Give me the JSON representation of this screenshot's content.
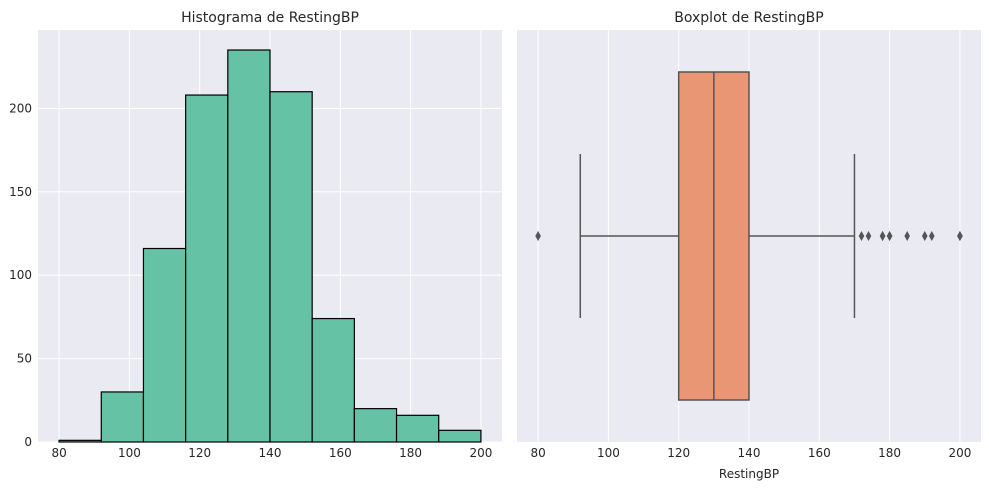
{
  "colors": {
    "panel_bg": "#eaeaf2",
    "grid": "#ffffff",
    "hist_fill": "#66c2a5",
    "box_fill": "#e99675",
    "box_stroke": "#555555",
    "text": "#262626"
  },
  "chart_data": [
    {
      "type": "bar",
      "subtype": "histogram",
      "title": "Histograma de RestingBP",
      "xlabel": "",
      "ylabel": "",
      "xlim": [
        74,
        206
      ],
      "ylim": [
        0,
        247
      ],
      "xticks": [
        80,
        100,
        120,
        140,
        160,
        180,
        200
      ],
      "yticks": [
        0,
        50,
        100,
        150,
        200
      ],
      "grid": true,
      "bins": [
        {
          "x0": 80,
          "x1": 92,
          "count": 1
        },
        {
          "x0": 92,
          "x1": 104,
          "count": 30
        },
        {
          "x0": 104,
          "x1": 116,
          "count": 116
        },
        {
          "x0": 116,
          "x1": 128,
          "count": 208
        },
        {
          "x0": 128,
          "x1": 140,
          "count": 235
        },
        {
          "x0": 140,
          "x1": 152,
          "count": 210
        },
        {
          "x0": 152,
          "x1": 164,
          "count": 74
        },
        {
          "x0": 164,
          "x1": 176,
          "count": 20
        },
        {
          "x0": 176,
          "x1": 188,
          "count": 16
        },
        {
          "x0": 188,
          "x1": 200,
          "count": 7
        }
      ]
    },
    {
      "type": "boxplot",
      "title": "Boxplot de RestingBP",
      "xlabel": "RestingBP",
      "xlim": [
        74,
        206
      ],
      "xticks": [
        80,
        100,
        120,
        140,
        160,
        180,
        200
      ],
      "grid": true,
      "whisker_low": 92,
      "q1": 120,
      "median": 130,
      "q3": 140,
      "whisker_high": 170,
      "outliers": [
        80,
        172,
        174,
        178,
        178,
        180,
        180,
        185,
        190,
        192,
        200,
        200
      ]
    }
  ]
}
